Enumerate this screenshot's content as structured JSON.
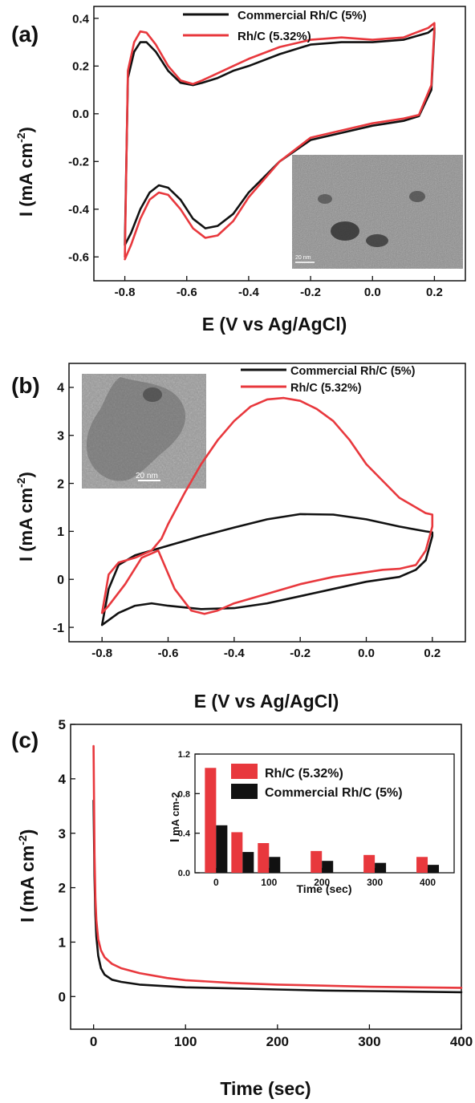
{
  "colors": {
    "black": "#111111",
    "red": "#e8383d"
  },
  "chart_data": [
    {
      "panel": "(a)",
      "type": "line",
      "xlabel": "E (V vs Ag/AgCl)",
      "ylabel": "I  (mA cm-2)",
      "xlim": [
        -0.9,
        0.3
      ],
      "ylim": [
        -0.7,
        0.45
      ],
      "x_ticks": [
        "-0.8",
        "-0.6",
        "-0.4",
        "-0.2",
        "0.0",
        "0.2"
      ],
      "y_ticks": [
        "0.4",
        "0.2",
        "0.0",
        "-0.2",
        "-0.4",
        "-0.6"
      ],
      "legend_position": "top-right",
      "inset": {
        "type": "tem-image",
        "position": "bottom-right",
        "scale_label": "20 nm"
      },
      "series": [
        {
          "name": "Commercial Rh/C (5%)",
          "color": "black",
          "x": [
            -0.8,
            -0.79,
            -0.77,
            -0.75,
            -0.73,
            -0.7,
            -0.66,
            -0.62,
            -0.58,
            -0.55,
            -0.5,
            -0.45,
            -0.4,
            -0.3,
            -0.2,
            -0.1,
            0.0,
            0.1,
            0.18,
            0.2,
            0.2,
            0.19,
            0.15,
            0.1,
            0.0,
            -0.1,
            -0.2,
            -0.3,
            -0.4,
            -0.45,
            -0.5,
            -0.54,
            -0.58,
            -0.62,
            -0.66,
            -0.69,
            -0.72,
            -0.75,
            -0.78,
            -0.8
          ],
          "y": [
            -0.55,
            0.15,
            0.26,
            0.3,
            0.3,
            0.26,
            0.18,
            0.13,
            0.12,
            0.13,
            0.15,
            0.18,
            0.2,
            0.25,
            0.29,
            0.3,
            0.3,
            0.31,
            0.34,
            0.36,
            0.34,
            0.1,
            -0.01,
            -0.03,
            -0.05,
            -0.08,
            -0.11,
            -0.2,
            -0.33,
            -0.42,
            -0.47,
            -0.48,
            -0.44,
            -0.36,
            -0.31,
            -0.3,
            -0.33,
            -0.4,
            -0.5,
            -0.55
          ]
        },
        {
          "name": "Rh/C (5.32%)",
          "color": "red",
          "x": [
            -0.8,
            -0.79,
            -0.77,
            -0.75,
            -0.73,
            -0.7,
            -0.66,
            -0.62,
            -0.58,
            -0.55,
            -0.5,
            -0.45,
            -0.4,
            -0.3,
            -0.2,
            -0.1,
            0.0,
            0.1,
            0.18,
            0.2,
            0.2,
            0.19,
            0.15,
            0.1,
            0.0,
            -0.1,
            -0.2,
            -0.3,
            -0.4,
            -0.45,
            -0.5,
            -0.54,
            -0.58,
            -0.62,
            -0.66,
            -0.69,
            -0.72,
            -0.75,
            -0.78,
            -0.8
          ],
          "y": [
            -0.6,
            0.18,
            0.3,
            0.345,
            0.34,
            0.29,
            0.2,
            0.14,
            0.125,
            0.14,
            0.17,
            0.2,
            0.23,
            0.28,
            0.31,
            0.32,
            0.31,
            0.32,
            0.36,
            0.38,
            0.36,
            0.12,
            -0.005,
            -0.02,
            -0.04,
            -0.07,
            -0.1,
            -0.2,
            -0.35,
            -0.45,
            -0.51,
            -0.52,
            -0.48,
            -0.4,
            -0.34,
            -0.33,
            -0.36,
            -0.44,
            -0.55,
            -0.61
          ]
        }
      ]
    },
    {
      "panel": "(b)",
      "type": "line",
      "xlabel": "E (V vs Ag/AgCl)",
      "ylabel": "I  (mA cm-2)",
      "xlim": [
        -0.9,
        0.3
      ],
      "ylim": [
        -1.3,
        4.5
      ],
      "x_ticks": [
        "-0.8",
        "-0.6",
        "-0.4",
        "-0.2",
        "0.0",
        "0.2"
      ],
      "y_ticks": [
        "4",
        "3",
        "2",
        "1",
        "0",
        "-1"
      ],
      "legend_position": "top-right",
      "inset": {
        "type": "tem-image",
        "position": "top-left",
        "scale_label": "20 nm"
      },
      "series": [
        {
          "name": "Commercial Rh/C (5%)",
          "color": "black",
          "x": [
            -0.8,
            -0.78,
            -0.75,
            -0.7,
            -0.6,
            -0.5,
            -0.4,
            -0.3,
            -0.2,
            -0.1,
            0.0,
            0.1,
            0.18,
            0.2,
            0.2,
            0.18,
            0.15,
            0.1,
            0.0,
            -0.1,
            -0.2,
            -0.3,
            -0.4,
            -0.5,
            -0.6,
            -0.65,
            -0.7,
            -0.75,
            -0.8
          ],
          "y": [
            -0.95,
            -0.2,
            0.3,
            0.5,
            0.7,
            0.9,
            1.08,
            1.25,
            1.36,
            1.35,
            1.25,
            1.1,
            1.0,
            0.98,
            0.9,
            0.4,
            0.2,
            0.05,
            -0.05,
            -0.2,
            -0.35,
            -0.5,
            -0.6,
            -0.62,
            -0.55,
            -0.5,
            -0.55,
            -0.7,
            -0.95
          ]
        },
        {
          "name": "Rh/C (5.32%)",
          "color": "red",
          "x": [
            -0.8,
            -0.78,
            -0.75,
            -0.7,
            -0.65,
            -0.62,
            -0.6,
            -0.55,
            -0.5,
            -0.45,
            -0.4,
            -0.35,
            -0.3,
            -0.25,
            -0.2,
            -0.15,
            -0.1,
            -0.05,
            0.0,
            0.1,
            0.18,
            0.2,
            0.2,
            0.18,
            0.15,
            0.1,
            0.05,
            0.0,
            -0.1,
            -0.2,
            -0.3,
            -0.4,
            -0.45,
            -0.49,
            -0.53,
            -0.58,
            -0.63,
            -0.68,
            -0.73,
            -0.78,
            -0.8
          ],
          "y": [
            -0.7,
            0.1,
            0.35,
            0.45,
            0.6,
            0.85,
            1.15,
            1.8,
            2.4,
            2.9,
            3.3,
            3.6,
            3.75,
            3.78,
            3.72,
            3.55,
            3.3,
            2.9,
            2.4,
            1.7,
            1.38,
            1.35,
            1.1,
            0.6,
            0.3,
            0.22,
            0.2,
            0.15,
            0.05,
            -0.1,
            -0.3,
            -0.5,
            -0.65,
            -0.72,
            -0.65,
            -0.2,
            0.6,
            0.45,
            -0.1,
            -0.55,
            -0.7
          ]
        }
      ]
    },
    {
      "panel": "(c)",
      "type": "line",
      "xlabel": "Time (sec)",
      "ylabel": "I  (mA cm-2)",
      "xlim": [
        -25,
        400
      ],
      "ylim": [
        -0.6,
        5
      ],
      "x_ticks": [
        "0",
        "100",
        "200",
        "300",
        "400"
      ],
      "y_ticks": [
        "5",
        "4",
        "3",
        "2",
        "1",
        "0"
      ],
      "series": [
        {
          "name": "Commercial Rh/C (5%)",
          "color": "black",
          "x": [
            0,
            1,
            2,
            3,
            5,
            8,
            12,
            20,
            30,
            50,
            80,
            100,
            150,
            200,
            250,
            300,
            350,
            400
          ],
          "y": [
            3.6,
            2.2,
            1.5,
            1.1,
            0.75,
            0.52,
            0.4,
            0.31,
            0.27,
            0.22,
            0.19,
            0.17,
            0.15,
            0.13,
            0.11,
            0.1,
            0.09,
            0.08
          ]
        },
        {
          "name": "Rh/C (5.32%)",
          "color": "red",
          "x": [
            0,
            1,
            2,
            3,
            5,
            8,
            12,
            20,
            30,
            50,
            80,
            100,
            150,
            200,
            250,
            300,
            350,
            400
          ],
          "y": [
            4.6,
            2.6,
            1.8,
            1.4,
            1.05,
            0.85,
            0.72,
            0.6,
            0.52,
            0.43,
            0.34,
            0.3,
            0.25,
            0.22,
            0.2,
            0.18,
            0.17,
            0.16
          ]
        }
      ]
    },
    {
      "panel": "(c) inset",
      "type": "bar",
      "xlabel": "Time (sec)",
      "ylabel": "I  mA cm-2",
      "xlim": [
        -40,
        450
      ],
      "ylim": [
        0,
        1.2
      ],
      "x_ticks": [
        "0",
        "100",
        "200",
        "300",
        "400"
      ],
      "y_ticks": [
        "1.2",
        "0.8",
        "0.4",
        "0.0"
      ],
      "categories": [
        0,
        50,
        100,
        200,
        300,
        400
      ],
      "legend_position": "top-right",
      "series": [
        {
          "name": "Rh/C (5.32%)",
          "color": "red",
          "values": [
            1.06,
            0.41,
            0.3,
            0.22,
            0.18,
            0.16
          ]
        },
        {
          "name": "Commercial Rh/C (5%)",
          "color": "black",
          "values": [
            0.48,
            0.21,
            0.16,
            0.12,
            0.1,
            0.08
          ]
        }
      ]
    }
  ]
}
